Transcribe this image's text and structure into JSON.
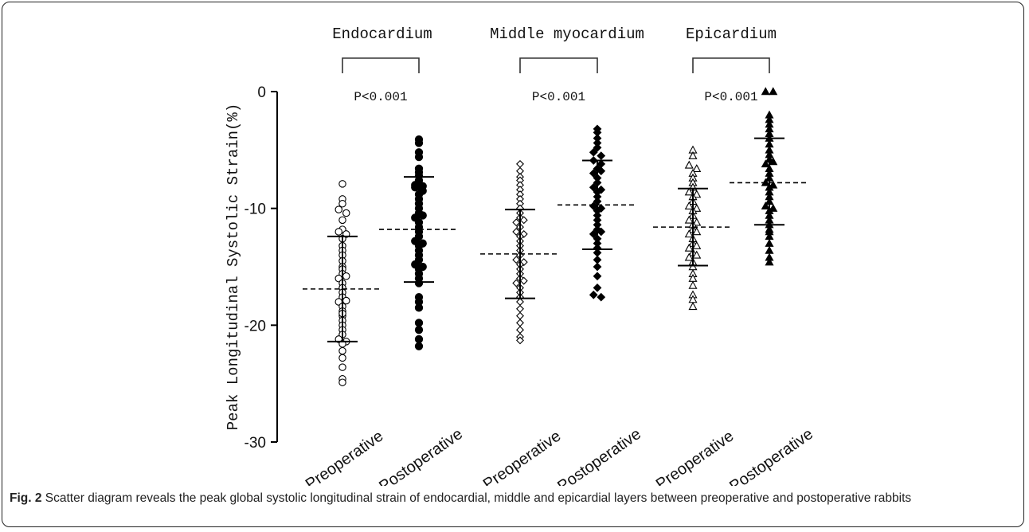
{
  "caption": {
    "label": "Fig. 2",
    "text": " Scatter diagram reveals the peak global systolic longitudinal strain of endocardial, middle and epicardial layers between preoperative and postoperative rabbits"
  },
  "chart_data": {
    "type": "scatter",
    "ylabel": "Peak Longitudinal Systolic Strain(%)",
    "ylim": [
      -30,
      0
    ],
    "yticks": [
      0,
      -10,
      -20,
      -30
    ],
    "categories": [
      "Preoperative",
      "Postoperative",
      "Preoperative",
      "Postoperative",
      "Preoperative",
      "Postoperative"
    ],
    "groups": [
      {
        "title": "Endocardium",
        "p_value": "P<0.001",
        "series": [
          {
            "category": "Preoperative",
            "marker": "circle-open",
            "mean": -16.9,
            "sd_upper": -12.4,
            "sd_lower": -21.4,
            "values": [
              -7.9,
              -9.2,
              -9.6,
              -10.1,
              -10.4,
              -11.0,
              -11.8,
              -12.0,
              -12.6,
              -13.2,
              -13.6,
              -14.0,
              -14.5,
              -15.0,
              -15.2,
              -15.6,
              -16.0,
              -16.4,
              -16.8,
              -17.2,
              -17.6,
              -18.0,
              -18.4,
              -18.8,
              -19.2,
              -19.6,
              -20.0,
              -20.4,
              -20.8,
              -21.2,
              -21.4,
              -21.6,
              -22.2,
              -22.8,
              -23.6,
              -24.6,
              -24.9,
              -15.8,
              -17.9,
              -19.0,
              -12.2
            ]
          },
          {
            "category": "Postoperative",
            "marker": "circle-filled",
            "mean": -11.8,
            "sd_upper": -7.3,
            "sd_lower": -16.3,
            "values": [
              -4.1,
              -4.4,
              -5.2,
              -5.6,
              -6.6,
              -6.9,
              -7.2,
              -7.6,
              -8.0,
              -8.1,
              -8.2,
              -8.5,
              -8.8,
              -9.2,
              -9.6,
              -10.0,
              -10.4,
              -10.8,
              -11.2,
              -11.6,
              -12.0,
              -12.4,
              -12.8,
              -13.2,
              -13.6,
              -14.0,
              -14.4,
              -14.8,
              -15.2,
              -15.6,
              -16.0,
              -16.4,
              -17.6,
              -18.0,
              -18.5,
              -19.8,
              -20.4,
              -21.2,
              -21.8,
              -10.6,
              -13.0,
              -15.0
            ]
          }
        ]
      },
      {
        "title": "Middle myocardium",
        "p_value": "P<0.001",
        "series": [
          {
            "category": "Preoperative",
            "marker": "diamond-open",
            "mean": -13.9,
            "sd_upper": -10.1,
            "sd_lower": -17.7,
            "values": [
              -6.2,
              -6.8,
              -7.3,
              -7.6,
              -8.0,
              -8.4,
              -8.8,
              -9.2,
              -9.6,
              -10.0,
              -10.4,
              -10.8,
              -11.2,
              -11.6,
              -12.0,
              -12.4,
              -12.8,
              -13.2,
              -13.6,
              -14.0,
              -14.4,
              -14.8,
              -15.2,
              -15.6,
              -16.0,
              -16.4,
              -16.8,
              -17.2,
              -17.6,
              -18.0,
              -18.6,
              -19.2,
              -19.8,
              -20.4,
              -21.0,
              -21.3,
              -12.2,
              -14.6,
              -16.2,
              -11.0
            ]
          },
          {
            "category": "Postoperative",
            "marker": "diamond-filled",
            "mean": -9.7,
            "sd_upper": -5.9,
            "sd_lower": -13.5,
            "values": [
              -3.2,
              -3.5,
              -4.0,
              -4.4,
              -4.8,
              -5.2,
              -5.5,
              -5.9,
              -6.2,
              -6.6,
              -7.0,
              -7.4,
              -7.8,
              -8.2,
              -8.6,
              -9.0,
              -9.4,
              -9.8,
              -10.2,
              -10.6,
              -11.0,
              -11.4,
              -11.8,
              -12.2,
              -12.6,
              -13.0,
              -13.4,
              -13.8,
              -14.4,
              -15.0,
              -15.8,
              -16.8,
              -17.4,
              -17.6,
              -8.4,
              -10.0,
              -6.8,
              -12.0
            ]
          }
        ]
      },
      {
        "title": "Epicardium",
        "p_value": "P<0.001",
        "series": [
          {
            "category": "Preoperative",
            "marker": "triangle-open",
            "mean": -11.6,
            "sd_upper": -8.3,
            "sd_lower": -14.9,
            "values": [
              -5.0,
              -5.5,
              -6.3,
              -6.6,
              -7.0,
              -7.4,
              -7.8,
              -8.2,
              -8.6,
              -9.0,
              -9.4,
              -9.8,
              -10.2,
              -10.6,
              -11.0,
              -11.4,
              -11.8,
              -12.2,
              -12.6,
              -13.0,
              -13.4,
              -13.8,
              -14.2,
              -14.6,
              -15.0,
              -15.6,
              -16.0,
              -16.6,
              -17.4,
              -17.8,
              -18.4,
              -12.0,
              -10.0,
              -13.2,
              -8.8,
              -11.2,
              -14.0
            ]
          },
          {
            "category": "Postoperative",
            "marker": "triangle-filled",
            "mean": -7.8,
            "sd_upper": -4.0,
            "sd_lower": -11.4,
            "values": [
              0.0,
              0.0,
              -2.0,
              -2.4,
              -2.8,
              -3.2,
              -3.6,
              -4.0,
              -4.5,
              -5.0,
              -5.4,
              -5.8,
              -6.2,
              -6.6,
              -7.0,
              -7.4,
              -7.8,
              -8.2,
              -8.6,
              -9.0,
              -9.4,
              -9.8,
              -10.2,
              -10.6,
              -11.0,
              -11.4,
              -11.8,
              -12.4,
              -13.0,
              -13.6,
              -14.2,
              -14.6,
              -8.0,
              -6.0,
              -10.0,
              -12.0
            ]
          }
        ]
      }
    ]
  }
}
